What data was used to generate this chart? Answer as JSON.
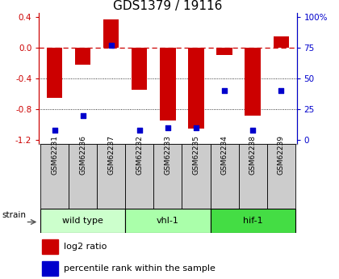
{
  "title": "GDS1379 / 19116",
  "samples": [
    "GSM62231",
    "GSM62236",
    "GSM62237",
    "GSM62232",
    "GSM62233",
    "GSM62235",
    "GSM62234",
    "GSM62238",
    "GSM62239"
  ],
  "log2_ratios": [
    -0.65,
    -0.22,
    0.37,
    -0.55,
    -0.95,
    -1.05,
    -0.1,
    -0.88,
    0.15
  ],
  "percentile_ranks": [
    8,
    20,
    77,
    8,
    10,
    10,
    40,
    8,
    40
  ],
  "ylim": [
    -1.25,
    0.45
  ],
  "y_ticks_left": [
    -1.2,
    -0.8,
    -0.4,
    0.0,
    0.4
  ],
  "y_ticks_right": [
    0,
    25,
    50,
    75,
    100
  ],
  "bar_color": "#cc0000",
  "dot_color": "#0000cc",
  "zero_line_color": "#cc0000",
  "grid_color": "#000000",
  "groups": [
    {
      "label": "wild type",
      "start": 0,
      "end": 3,
      "color": "#ccffcc"
    },
    {
      "label": "vhl-1",
      "start": 3,
      "end": 6,
      "color": "#aaffaa"
    },
    {
      "label": "hif-1",
      "start": 6,
      "end": 9,
      "color": "#44dd44"
    }
  ],
  "legend_bar_color": "#cc0000",
  "legend_dot_color": "#0000cc",
  "legend_label_bar": "log2 ratio",
  "legend_label_dot": "percentile rank within the sample",
  "strain_label": "strain",
  "background_color": "#ffffff",
  "plot_bg_color": "#ffffff",
  "tick_label_color_left": "#cc0000",
  "tick_label_color_right": "#0000cc",
  "sample_box_color": "#cccccc",
  "bar_width": 0.55
}
